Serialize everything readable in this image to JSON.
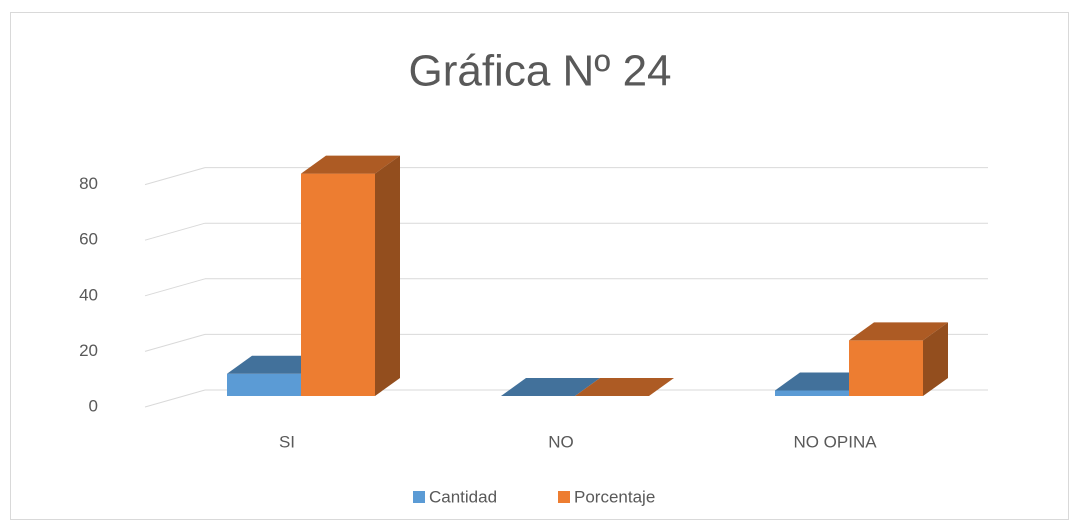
{
  "chart_data": {
    "type": "bar3d",
    "title": "Gráfica Nº 24",
    "categories": [
      "SI",
      "NO",
      "NO OPINA"
    ],
    "series": [
      {
        "name": "Cantidad",
        "color": "#5b9bd5",
        "values": [
          8,
          0,
          2
        ]
      },
      {
        "name": "Porcentaje",
        "color": "#ed7d31",
        "values": [
          80,
          0,
          20
        ]
      }
    ],
    "ylim": [
      0,
      90
    ],
    "yticks": [
      0,
      20,
      40,
      60,
      80
    ],
    "grid": true,
    "legend": "bottom"
  }
}
